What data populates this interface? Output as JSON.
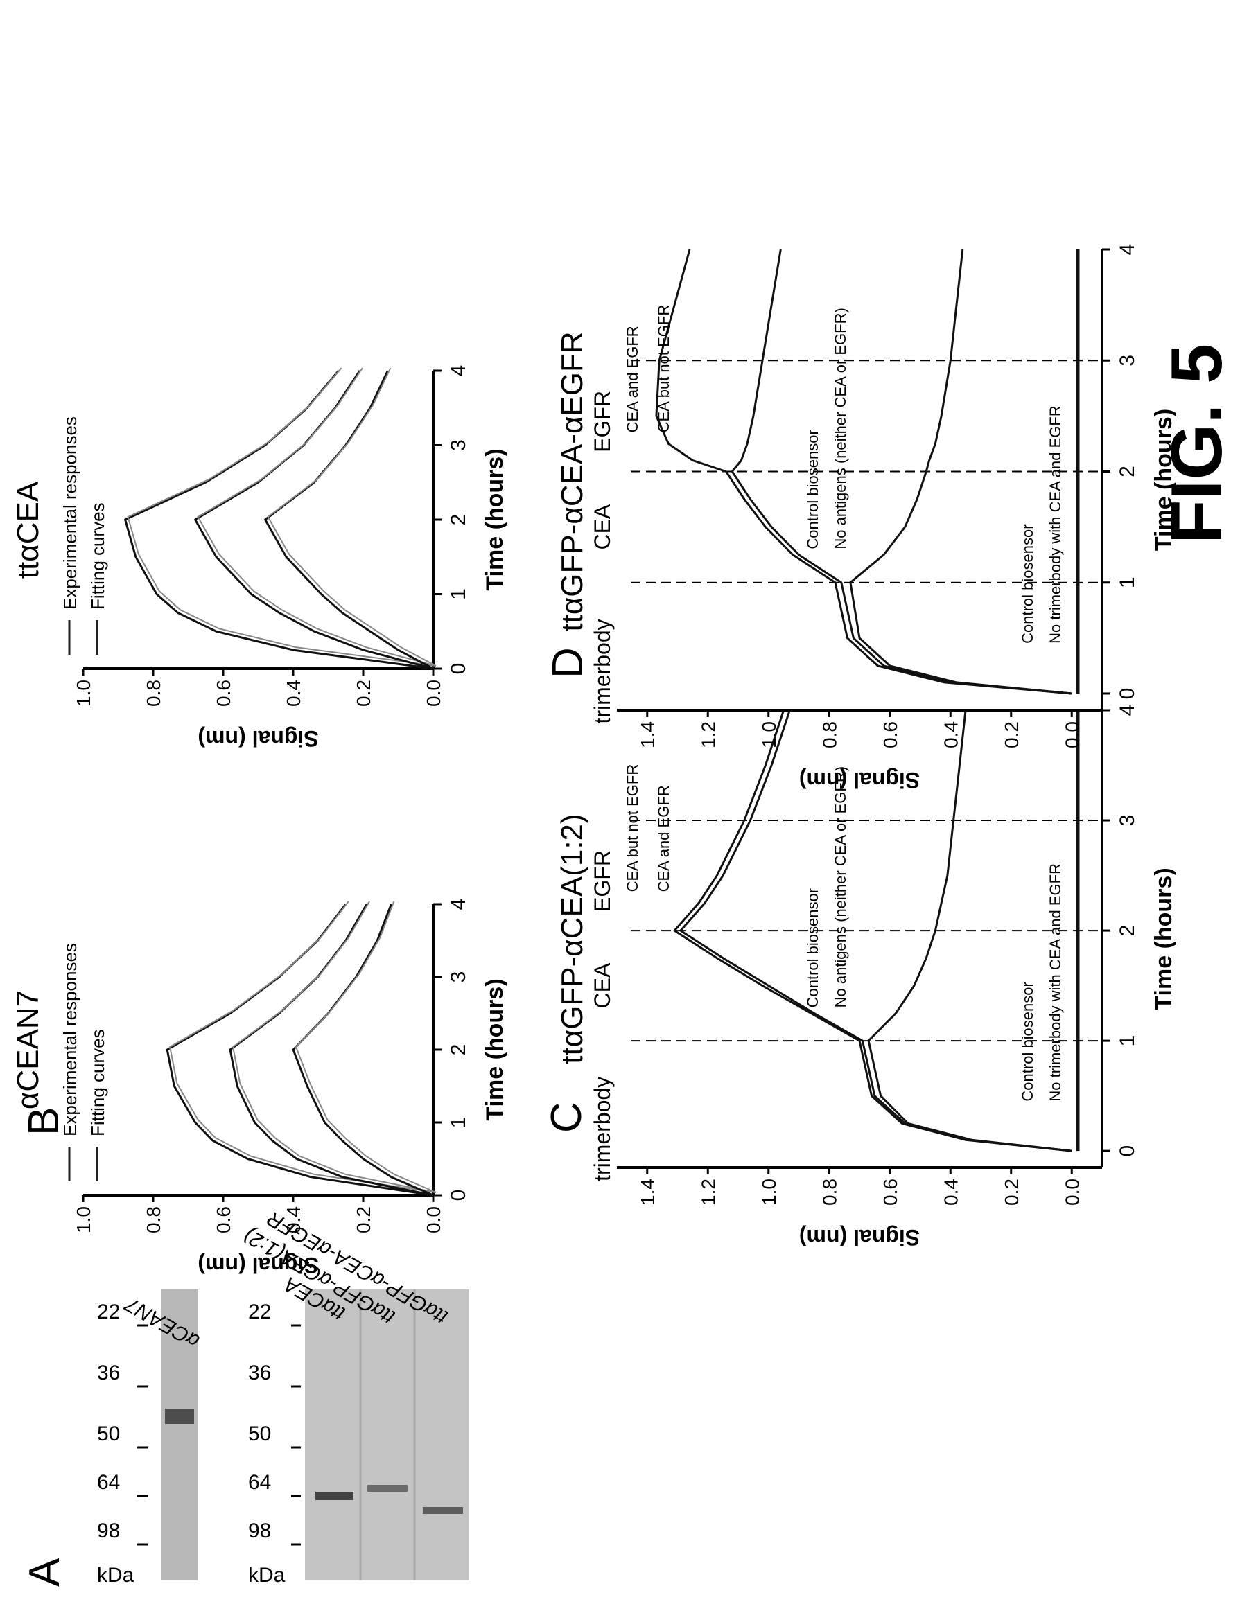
{
  "figure": {
    "label": "FIG. 5"
  },
  "panel_labels": {
    "a": "A",
    "b": "B",
    "c": "C",
    "d": "D"
  },
  "gel": {
    "unit": "kDa",
    "markers": [
      "98",
      "64",
      "50",
      "36",
      "22"
    ],
    "lane_labels": {
      "left": "αCEAN7",
      "right": [
        "ttαCEA",
        "ttαGFP-αCEA(1:2)",
        "ttαGFP-αCEA-αEGFR"
      ]
    }
  },
  "chart_data": [
    {
      "type": "line",
      "panel": "B",
      "title": "αCEAN7",
      "xlabel": "Time (hours)",
      "ylabel": "Signal (nm)",
      "xlim": [
        0,
        4
      ],
      "ylim": [
        0,
        1.0
      ],
      "x_ticks": [
        "0",
        "1",
        "2",
        "3",
        "4"
      ],
      "y_ticks": [
        "0.0",
        "0.2",
        "0.4",
        "0.6",
        "0.8",
        "1.0"
      ],
      "legend": [
        "Experimental responses",
        "Fitting curves"
      ],
      "legend_position": "top",
      "x": [
        0,
        0.25,
        0.5,
        0.75,
        1.0,
        1.5,
        2.0,
        2.5,
        3.0,
        3.5,
        4.0
      ],
      "series": [
        {
          "values": [
            0.0,
            0.35,
            0.53,
            0.63,
            0.68,
            0.74,
            0.76,
            0.58,
            0.44,
            0.33,
            0.25
          ]
        },
        {
          "values": [
            0.0,
            0.26,
            0.39,
            0.46,
            0.51,
            0.56,
            0.58,
            0.44,
            0.33,
            0.25,
            0.19
          ]
        },
        {
          "values": [
            0.0,
            0.12,
            0.2,
            0.26,
            0.31,
            0.36,
            0.4,
            0.3,
            0.22,
            0.16,
            0.12
          ]
        }
      ]
    },
    {
      "type": "line",
      "panel": "B2",
      "title": "ttαCEA",
      "xlabel": "Time (hours)",
      "ylabel": "Signal (nm)",
      "xlim": [
        0,
        4
      ],
      "ylim": [
        0,
        1.0
      ],
      "x_ticks": [
        "0",
        "1",
        "2",
        "3",
        "4"
      ],
      "y_ticks": [
        "0.0",
        "0.2",
        "0.4",
        "0.6",
        "0.8",
        "1.0"
      ],
      "legend": [
        "Experimental responses",
        "Fitting curves"
      ],
      "legend_position": "top",
      "x": [
        0,
        0.25,
        0.5,
        0.75,
        1.0,
        1.5,
        2.0,
        2.5,
        3.0,
        3.5,
        4.0
      ],
      "series": [
        {
          "values": [
            0.0,
            0.4,
            0.62,
            0.73,
            0.79,
            0.85,
            0.88,
            0.65,
            0.48,
            0.36,
            0.27
          ]
        },
        {
          "values": [
            0.0,
            0.2,
            0.34,
            0.44,
            0.52,
            0.62,
            0.68,
            0.5,
            0.37,
            0.28,
            0.21
          ]
        },
        {
          "values": [
            0.0,
            0.1,
            0.18,
            0.26,
            0.32,
            0.42,
            0.48,
            0.34,
            0.25,
            0.18,
            0.13
          ]
        }
      ]
    },
    {
      "type": "line",
      "panel": "C",
      "title": "ttαGFP-αCEA(1:2)",
      "xlabel": "Time (hours)",
      "ylabel": "Signal (nm)",
      "xlim": [
        -0.15,
        4
      ],
      "ylim": [
        -0.1,
        1.5
      ],
      "x_ticks": [
        "0",
        "1",
        "2",
        "3",
        "4"
      ],
      "y_ticks": [
        "0.0",
        "0.2",
        "0.4",
        "0.6",
        "0.8",
        "1.0",
        "1.2",
        "1.4"
      ],
      "phases": [
        "trimerbody",
        "CEA",
        "EGFR"
      ],
      "phase_lines": [
        1,
        2,
        3
      ],
      "annotations": [
        "CEA but not EGFR",
        "CEA and EGFR",
        "Control biosensor",
        "No antigens (neither CEA or EGFR)",
        "Control biosensor",
        "No trimerbody with CEA and EGFR"
      ],
      "x": [
        0,
        0.1,
        0.25,
        0.5,
        1.0,
        1.25,
        1.5,
        1.75,
        2.0,
        2.25,
        2.5,
        3.0,
        3.5,
        4.0
      ],
      "series": [
        {
          "values": [
            0.0,
            0.35,
            0.56,
            0.66,
            0.7,
            0.86,
            1.02,
            1.17,
            1.31,
            1.23,
            1.17,
            1.08,
            1.01,
            0.95
          ]
        },
        {
          "values": [
            0.0,
            0.34,
            0.55,
            0.65,
            0.69,
            0.85,
            1.0,
            1.15,
            1.29,
            1.21,
            1.15,
            1.06,
            0.99,
            0.93
          ]
        },
        {
          "values": [
            0.0,
            0.33,
            0.54,
            0.63,
            0.67,
            0.58,
            0.52,
            0.48,
            0.45,
            0.43,
            0.41,
            0.39,
            0.37,
            0.35
          ]
        },
        {
          "values": [
            -0.02,
            -0.02,
            -0.02,
            -0.02,
            -0.02,
            -0.02,
            -0.02,
            -0.02,
            -0.02,
            -0.02,
            -0.02,
            -0.02,
            -0.02,
            -0.02
          ]
        }
      ]
    },
    {
      "type": "line",
      "panel": "D",
      "title": "ttαGFP-αCEA-αEGFR",
      "xlabel": "Time (hours)",
      "ylabel": "Signal (nm)",
      "xlim": [
        -0.15,
        4
      ],
      "ylim": [
        -0.1,
        1.5
      ],
      "x_ticks": [
        "0",
        "1",
        "2",
        "3",
        "4"
      ],
      "y_ticks": [
        "0.0",
        "0.2",
        "0.4",
        "0.6",
        "0.8",
        "1.0",
        "1.2",
        "1.4"
      ],
      "phases": [
        "trimerbody",
        "CEA",
        "EGFR"
      ],
      "phase_lines": [
        1,
        2,
        3
      ],
      "annotations": [
        "CEA and EGFR",
        "CEA but not EGFR",
        "Control biosensor",
        "No antigens (neither CEA or EGFR)",
        "Control biosensor",
        "No trimerbody with CEA and EGFR"
      ],
      "x": [
        0,
        0.1,
        0.25,
        0.5,
        1.0,
        1.25,
        1.5,
        1.75,
        2.0,
        2.1,
        2.25,
        2.5,
        3.0,
        3.5,
        4.0
      ],
      "series": [
        {
          "values": [
            0.0,
            0.42,
            0.64,
            0.74,
            0.78,
            0.92,
            1.01,
            1.08,
            1.14,
            1.25,
            1.33,
            1.37,
            1.36,
            1.31,
            1.26
          ]
        },
        {
          "values": [
            0.0,
            0.4,
            0.62,
            0.72,
            0.76,
            0.9,
            0.99,
            1.06,
            1.12,
            1.09,
            1.07,
            1.05,
            1.02,
            0.99,
            0.96
          ]
        },
        {
          "values": [
            0.0,
            0.38,
            0.6,
            0.7,
            0.73,
            0.62,
            0.55,
            0.51,
            0.48,
            0.47,
            0.45,
            0.43,
            0.4,
            0.38,
            0.36
          ]
        },
        {
          "values": [
            -0.02,
            -0.02,
            -0.02,
            -0.02,
            -0.02,
            -0.02,
            -0.02,
            -0.02,
            -0.02,
            -0.02,
            -0.02,
            -0.02,
            -0.02,
            -0.02,
            -0.02
          ]
        }
      ]
    }
  ]
}
